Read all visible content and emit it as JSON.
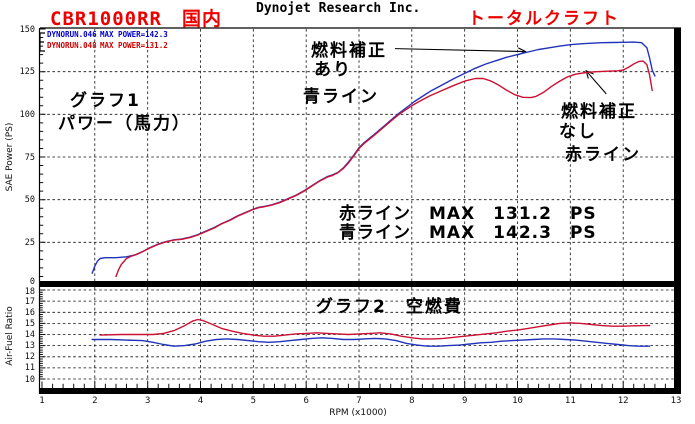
{
  "header": {
    "bike": "CBR1000RR　国内",
    "company": "Dynojet Research Inc.",
    "shop": "トータルクラフト"
  },
  "legend": [
    {
      "run": "DYNORUN.046",
      "max": "MAX POWER=142.3",
      "color": "#0000cc"
    },
    {
      "run": "DYNORUN.048",
      "max": "MAX POWER=131.2",
      "color": "#cc0000"
    }
  ],
  "annotations": {
    "graph1_line1": "グラフ1",
    "graph1_line2": "パワー（馬力）",
    "fuel_on_line1": "燃料補正",
    "fuel_on_line2": "あり",
    "fuel_on_line3": "青ライン",
    "fuel_off_line1": "燃料補正",
    "fuel_off_line2": "なし",
    "fuel_off_line3": "赤ライン",
    "max_red_line": "赤ライン　MAX　131.2　PS",
    "max_blue_line": "青ライン　MAX　142.3　PS",
    "graph2_title": "グラフ2　空燃費"
  },
  "chart_data": [
    {
      "type": "line",
      "ylabel": "SAE Power (PS)",
      "xlabel": "RPM (x1000)",
      "xlim": [
        1,
        13
      ],
      "ylim": [
        0,
        150
      ],
      "yticks": [
        0,
        25,
        50,
        75,
        100,
        125,
        150
      ],
      "grid": "dashed",
      "arrows": [
        {
          "from": [
            7.68,
            138.5
          ],
          "to": [
            10.15,
            136.8
          ]
        },
        {
          "from": [
            11.68,
            112.0
          ],
          "to": [
            11.3,
            125.5
          ]
        }
      ],
      "series": [
        {
          "name": "DYNORUN.046",
          "color": "#2233bb",
          "max_power_ps": 142.3,
          "points": [
            [
              1.95,
              7
            ],
            [
              2.0,
              11
            ],
            [
              2.05,
              14
            ],
            [
              2.1,
              15.5
            ],
            [
              2.2,
              16
            ],
            [
              2.4,
              16
            ],
            [
              2.6,
              16.5
            ],
            [
              2.75,
              17.5
            ],
            [
              2.9,
              19.5
            ],
            [
              3.05,
              22
            ],
            [
              3.2,
              24
            ],
            [
              3.35,
              25.5
            ],
            [
              3.5,
              26.5
            ],
            [
              3.65,
              27
            ],
            [
              3.8,
              28
            ],
            [
              3.95,
              29.5
            ],
            [
              4.1,
              31.5
            ],
            [
              4.25,
              33.5
            ],
            [
              4.4,
              36
            ],
            [
              4.55,
              38
            ],
            [
              4.7,
              40.5
            ],
            [
              4.85,
              42.5
            ],
            [
              5.0,
              44.5
            ],
            [
              5.1,
              45.5
            ],
            [
              5.2,
              46
            ],
            [
              5.35,
              47
            ],
            [
              5.5,
              48.5
            ],
            [
              5.65,
              50.5
            ],
            [
              5.8,
              52.5
            ],
            [
              5.95,
              55
            ],
            [
              6.1,
              58
            ],
            [
              6.25,
              61
            ],
            [
              6.4,
              63.5
            ],
            [
              6.5,
              64.5
            ],
            [
              6.6,
              66
            ],
            [
              6.7,
              68.5
            ],
            [
              6.8,
              72
            ],
            [
              6.9,
              76
            ],
            [
              7.0,
              80.5
            ],
            [
              7.1,
              83.5
            ],
            [
              7.2,
              86
            ],
            [
              7.3,
              88.5
            ],
            [
              7.45,
              92.5
            ],
            [
              7.6,
              96.5
            ],
            [
              7.75,
              100.5
            ],
            [
              7.9,
              104
            ],
            [
              8.05,
              107.5
            ],
            [
              8.2,
              110.5
            ],
            [
              8.35,
              113.5
            ],
            [
              8.5,
              116
            ],
            [
              8.65,
              118.5
            ],
            [
              8.8,
              121
            ],
            [
              9.0,
              124
            ],
            [
              9.2,
              127
            ],
            [
              9.4,
              129.5
            ],
            [
              9.6,
              131.5
            ],
            [
              9.8,
              133.5
            ],
            [
              10.0,
              135
            ],
            [
              10.2,
              136.5
            ],
            [
              10.4,
              138
            ],
            [
              10.6,
              139
            ],
            [
              10.8,
              140
            ],
            [
              11.0,
              140.8
            ],
            [
              11.2,
              141.3
            ],
            [
              11.4,
              141.7
            ],
            [
              11.6,
              142
            ],
            [
              11.8,
              142.1
            ],
            [
              12.0,
              142.2
            ],
            [
              12.2,
              142.3
            ],
            [
              12.35,
              142
            ],
            [
              12.45,
              139
            ],
            [
              12.5,
              133
            ],
            [
              12.55,
              126
            ],
            [
              12.6,
              122.5
            ]
          ]
        },
        {
          "name": "DYNORUN.048",
          "color": "#cc1133",
          "max_power_ps": 131.2,
          "points": [
            [
              2.4,
              5
            ],
            [
              2.45,
              9
            ],
            [
              2.5,
              12
            ],
            [
              2.6,
              15.5
            ],
            [
              2.7,
              17
            ],
            [
              2.8,
              18
            ],
            [
              2.9,
              19.5
            ],
            [
              3.05,
              21.8
            ],
            [
              3.2,
              23.8
            ],
            [
              3.35,
              25.3
            ],
            [
              3.5,
              26.3
            ],
            [
              3.65,
              26.8
            ],
            [
              3.8,
              27.8
            ],
            [
              3.95,
              29.3
            ],
            [
              4.1,
              31.3
            ],
            [
              4.25,
              33.3
            ],
            [
              4.4,
              35.8
            ],
            [
              4.55,
              37.8
            ],
            [
              4.7,
              40.3
            ],
            [
              4.85,
              42.3
            ],
            [
              5.0,
              44.3
            ],
            [
              5.1,
              45.3
            ],
            [
              5.2,
              45.8
            ],
            [
              5.35,
              46.8
            ],
            [
              5.5,
              48.3
            ],
            [
              5.65,
              50.3
            ],
            [
              5.8,
              52.3
            ],
            [
              5.95,
              54.8
            ],
            [
              6.1,
              57.8
            ],
            [
              6.25,
              60.8
            ],
            [
              6.4,
              63.2
            ],
            [
              6.5,
              64.2
            ],
            [
              6.6,
              65.8
            ],
            [
              6.7,
              68.2
            ],
            [
              6.8,
              71.5
            ],
            [
              6.9,
              75.5
            ],
            [
              7.0,
              80
            ],
            [
              7.1,
              83
            ],
            [
              7.2,
              85.5
            ],
            [
              7.3,
              88
            ],
            [
              7.45,
              92
            ],
            [
              7.6,
              96
            ],
            [
              7.75,
              99.8
            ],
            [
              7.9,
              103
            ],
            [
              8.05,
              106
            ],
            [
              8.2,
              108.5
            ],
            [
              8.35,
              111
            ],
            [
              8.5,
              113
            ],
            [
              8.65,
              115
            ],
            [
              8.8,
              117
            ],
            [
              9.0,
              119.5
            ],
            [
              9.2,
              121
            ],
            [
              9.35,
              121
            ],
            [
              9.5,
              119.5
            ],
            [
              9.65,
              117
            ],
            [
              9.8,
              114
            ],
            [
              9.95,
              111.5
            ],
            [
              10.1,
              110
            ],
            [
              10.25,
              109.8
            ],
            [
              10.35,
              110.5
            ],
            [
              10.5,
              113
            ],
            [
              10.65,
              116.5
            ],
            [
              10.8,
              119.5
            ],
            [
              10.95,
              122
            ],
            [
              11.1,
              123.5
            ],
            [
              11.3,
              124.5
            ],
            [
              11.5,
              125
            ],
            [
              11.7,
              125.3
            ],
            [
              11.9,
              125.5
            ],
            [
              12.0,
              126
            ],
            [
              12.1,
              127.5
            ],
            [
              12.2,
              129.5
            ],
            [
              12.3,
              131
            ],
            [
              12.38,
              131.2
            ],
            [
              12.45,
              129
            ],
            [
              12.5,
              123
            ],
            [
              12.55,
              114
            ]
          ]
        }
      ]
    },
    {
      "type": "line",
      "ylabel": "Air-Fuel Ratio",
      "xlabel": "RPM (x1000)",
      "xlim": [
        1,
        13
      ],
      "ylim": [
        10,
        18
      ],
      "yticks": [
        10,
        11,
        12,
        13,
        14,
        15,
        16,
        17,
        18
      ],
      "xticks": [
        1,
        2,
        3,
        4,
        5,
        6,
        7,
        8,
        9,
        10,
        11,
        12,
        13
      ],
      "grid": "dashed",
      "series": [
        {
          "name": "DYNORUN.046",
          "color": "#2233bb",
          "points": [
            [
              1.95,
              13.55
            ],
            [
              2.3,
              13.55
            ],
            [
              2.6,
              13.5
            ],
            [
              2.9,
              13.45
            ],
            [
              3.1,
              13.3
            ],
            [
              3.3,
              13.1
            ],
            [
              3.5,
              12.95
            ],
            [
              3.7,
              13.0
            ],
            [
              3.9,
              13.15
            ],
            [
              4.1,
              13.4
            ],
            [
              4.3,
              13.55
            ],
            [
              4.5,
              13.6
            ],
            [
              4.7,
              13.55
            ],
            [
              4.9,
              13.45
            ],
            [
              5.1,
              13.35
            ],
            [
              5.3,
              13.3
            ],
            [
              5.5,
              13.35
            ],
            [
              5.7,
              13.45
            ],
            [
              5.9,
              13.55
            ],
            [
              6.1,
              13.65
            ],
            [
              6.3,
              13.7
            ],
            [
              6.5,
              13.65
            ],
            [
              6.7,
              13.55
            ],
            [
              6.9,
              13.55
            ],
            [
              7.1,
              13.6
            ],
            [
              7.3,
              13.65
            ],
            [
              7.5,
              13.6
            ],
            [
              7.7,
              13.45
            ],
            [
              7.9,
              13.2
            ],
            [
              8.1,
              13.05
            ],
            [
              8.3,
              12.95
            ],
            [
              8.5,
              12.95
            ],
            [
              8.7,
              13.0
            ],
            [
              8.9,
              13.05
            ],
            [
              9.1,
              13.15
            ],
            [
              9.3,
              13.25
            ],
            [
              9.5,
              13.3
            ],
            [
              9.7,
              13.4
            ],
            [
              9.9,
              13.45
            ],
            [
              10.1,
              13.5
            ],
            [
              10.3,
              13.55
            ],
            [
              10.5,
              13.6
            ],
            [
              10.7,
              13.6
            ],
            [
              10.9,
              13.55
            ],
            [
              11.1,
              13.5
            ],
            [
              11.3,
              13.4
            ],
            [
              11.5,
              13.3
            ],
            [
              11.7,
              13.2
            ],
            [
              11.9,
              13.1
            ],
            [
              12.1,
              13.0
            ],
            [
              12.3,
              12.95
            ],
            [
              12.5,
              12.95
            ]
          ]
        },
        {
          "name": "DYNORUN.048",
          "color": "#cc1133",
          "points": [
            [
              2.1,
              13.95
            ],
            [
              2.5,
              14.0
            ],
            [
              2.8,
              14.0
            ],
            [
              3.1,
              14.0
            ],
            [
              3.3,
              14.1
            ],
            [
              3.5,
              14.35
            ],
            [
              3.7,
              14.8
            ],
            [
              3.85,
              15.2
            ],
            [
              3.95,
              15.35
            ],
            [
              4.05,
              15.25
            ],
            [
              4.2,
              14.95
            ],
            [
              4.4,
              14.55
            ],
            [
              4.6,
              14.3
            ],
            [
              4.8,
              14.1
            ],
            [
              5.0,
              13.95
            ],
            [
              5.2,
              13.85
            ],
            [
              5.4,
              13.85
            ],
            [
              5.6,
              13.95
            ],
            [
              5.8,
              14.05
            ],
            [
              6.0,
              14.1
            ],
            [
              6.2,
              14.15
            ],
            [
              6.4,
              14.1
            ],
            [
              6.6,
              14.05
            ],
            [
              6.8,
              14.0
            ],
            [
              7.0,
              14.05
            ],
            [
              7.2,
              14.1
            ],
            [
              7.4,
              14.15
            ],
            [
              7.6,
              14.05
            ],
            [
              7.8,
              13.85
            ],
            [
              8.0,
              13.7
            ],
            [
              8.2,
              13.6
            ],
            [
              8.4,
              13.6
            ],
            [
              8.6,
              13.65
            ],
            [
              8.8,
              13.75
            ],
            [
              9.0,
              13.85
            ],
            [
              9.2,
              13.95
            ],
            [
              9.4,
              14.05
            ],
            [
              9.6,
              14.15
            ],
            [
              9.8,
              14.3
            ],
            [
              10.0,
              14.4
            ],
            [
              10.2,
              14.55
            ],
            [
              10.4,
              14.7
            ],
            [
              10.6,
              14.85
            ],
            [
              10.8,
              15.0
            ],
            [
              11.0,
              15.05
            ],
            [
              11.2,
              15.0
            ],
            [
              11.4,
              14.9
            ],
            [
              11.6,
              14.8
            ],
            [
              11.8,
              14.75
            ],
            [
              12.0,
              14.75
            ],
            [
              12.2,
              14.78
            ],
            [
              12.4,
              14.8
            ],
            [
              12.5,
              14.8
            ]
          ]
        }
      ]
    }
  ]
}
